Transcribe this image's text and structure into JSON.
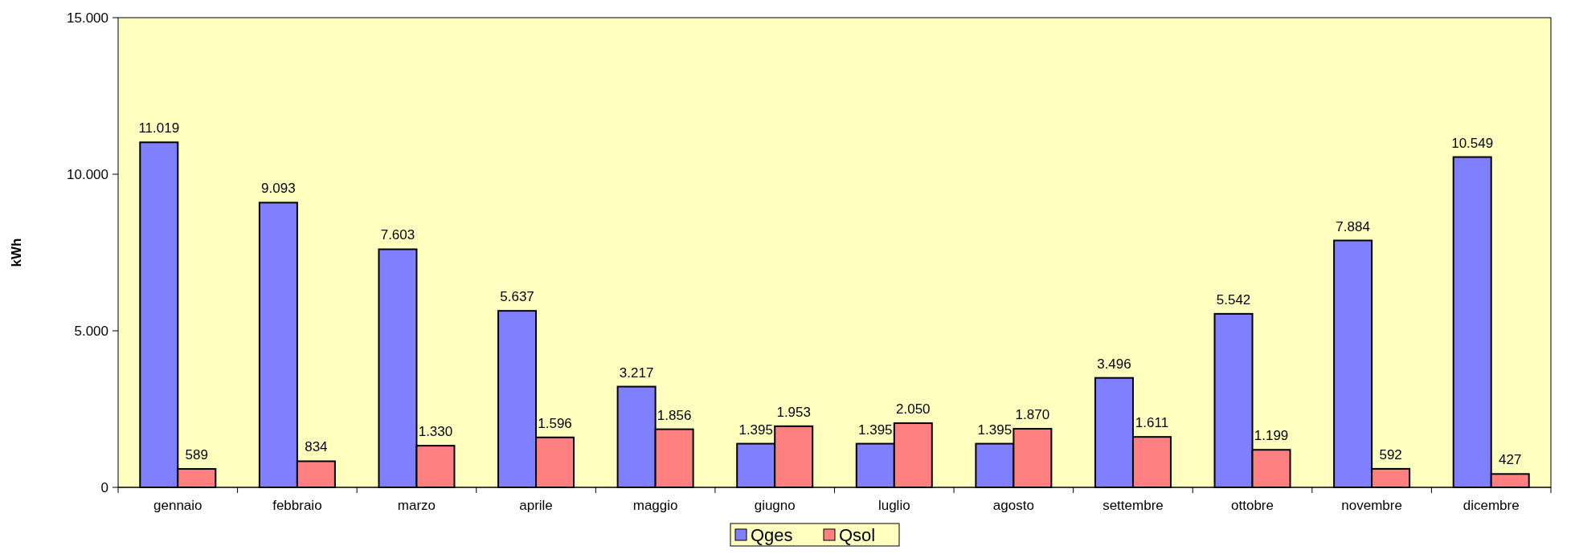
{
  "chart_data": {
    "type": "bar",
    "ylabel": "kWh",
    "categories": [
      "gennaio",
      "febbraio",
      "marzo",
      "aprile",
      "maggio",
      "giugno",
      "luglio",
      "agosto",
      "settembre",
      "ottobre",
      "novembre",
      "dicembre"
    ],
    "series": [
      {
        "name": "Qges",
        "color": "#8080ff",
        "values": [
          11019,
          9093,
          7603,
          5637,
          3217,
          1395,
          1395,
          1395,
          3496,
          5542,
          7884,
          10549
        ],
        "value_labels": [
          "11.019",
          "9.093",
          "7.603",
          "5.637",
          "3.217",
          "1.395",
          "1.395",
          "1.395",
          "3.496",
          "5.542",
          "7.884",
          "10.549"
        ]
      },
      {
        "name": "Qsol",
        "color": "#ff8080",
        "values": [
          589,
          834,
          1330,
          1596,
          1856,
          1953,
          2050,
          1870,
          1611,
          1199,
          592,
          427
        ],
        "value_labels": [
          "589",
          "834",
          "1.330",
          "1.596",
          "1.856",
          "1.953",
          "2.050",
          "1.870",
          "1.611",
          "1.199",
          "592",
          "427"
        ]
      }
    ],
    "ylim": [
      0,
      15000
    ],
    "yticks": [
      {
        "value": 0,
        "label": "0"
      },
      {
        "value": 5000,
        "label": "5.000"
      },
      {
        "value": 10000,
        "label": "10.000"
      },
      {
        "value": 15000,
        "label": "15.000"
      }
    ],
    "grid": false,
    "legend": "bottom"
  }
}
